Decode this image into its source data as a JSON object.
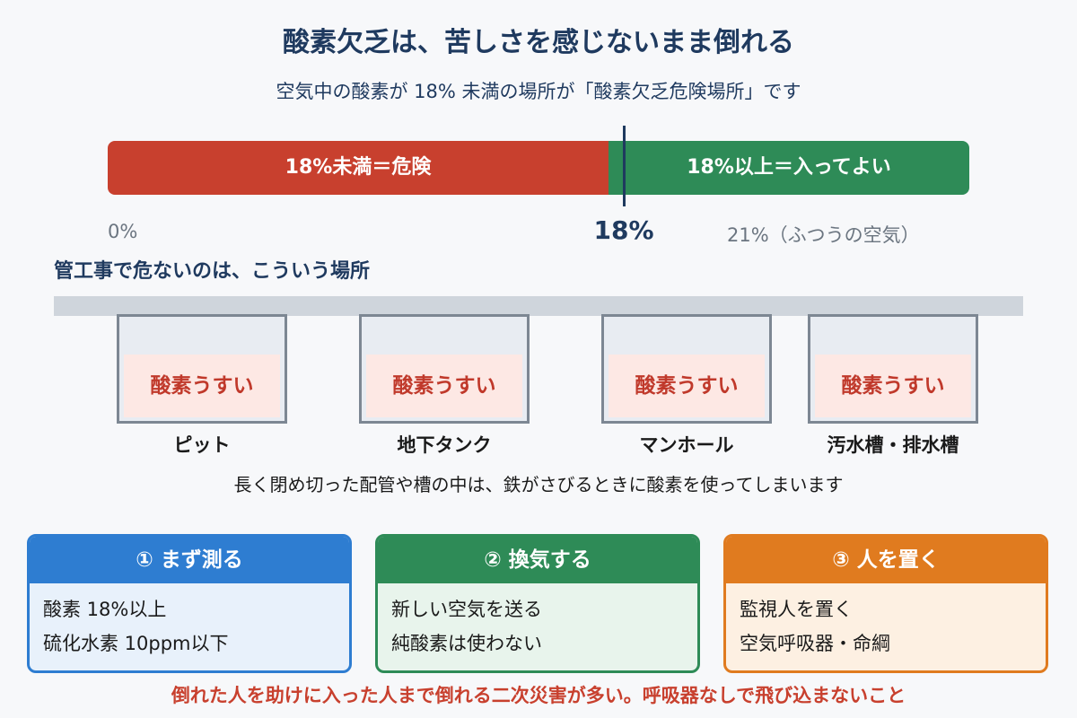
{
  "header": {
    "title": "酸素欠乏は、苦しさを感じないまま倒れる",
    "subtitle": "空気中の酸素が 18% 未満の場所が「酸素欠乏危険場所」です"
  },
  "scale": {
    "danger": "18%未満＝危険",
    "safe": "18%以上＝入ってよい",
    "low_label": "0%",
    "threshold_label": "18%",
    "high_label": "21%（ふつうの空気）"
  },
  "places": {
    "heading": "管工事で危ないのは、こういう場所",
    "items": [
      {
        "inner": "酸素うすい",
        "label": "ピット"
      },
      {
        "inner": "酸素うすい",
        "label": "地下タンク"
      },
      {
        "inner": "酸素うすい",
        "label": "マンホール"
      },
      {
        "inner": "酸素うすい",
        "label": "汚水槽・排水槽"
      }
    ],
    "note": "長く閉め切った配管や槽の中は、鉄がさびるときに酸素を使ってしまいます"
  },
  "steps": [
    {
      "title": "① まず測る",
      "lines": [
        "酸素 18%以上",
        "硫化水素 10ppm以下"
      ]
    },
    {
      "title": "② 換気する",
      "lines": [
        "新しい空気を送る",
        "純酸素は使わない"
      ]
    },
    {
      "title": "③ 人を置く",
      "lines": [
        "監視人を置く",
        "空気呼吸器・命綱"
      ]
    }
  ],
  "warning": "倒れた人を助けに入った人まで倒れる二次災害が多い。呼吸器なしで飛び込まないこと"
}
